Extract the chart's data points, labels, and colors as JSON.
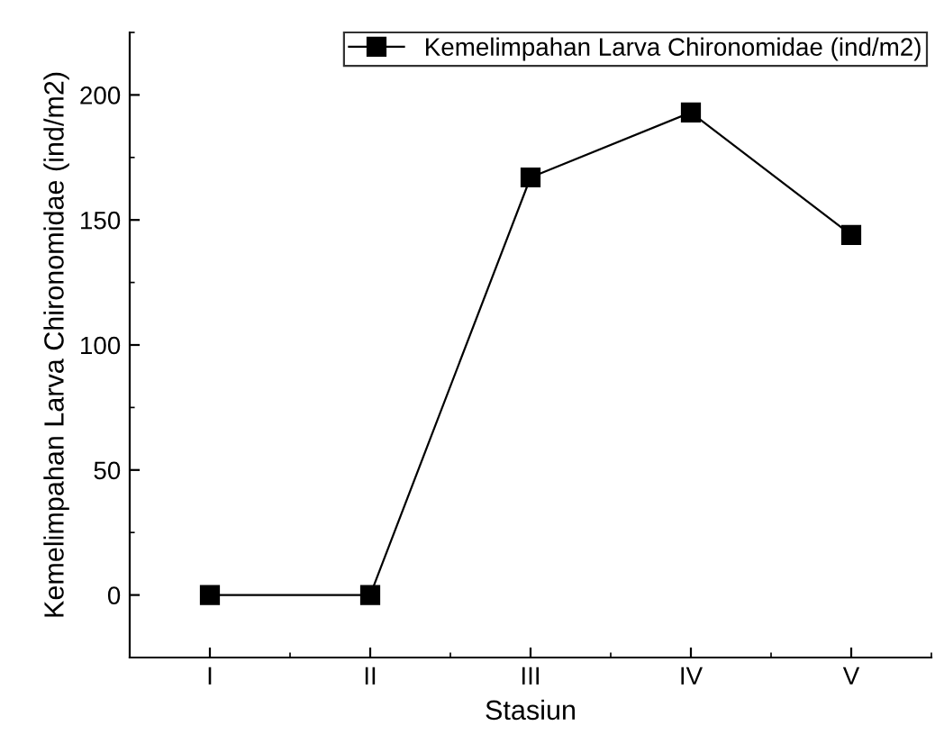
{
  "chart_data": {
    "type": "line",
    "xlabel": "Stasiun",
    "ylabel": "Kemelimpahan Larva Chironomidae (ind/m2)",
    "categories": [
      "I",
      "II",
      "III",
      "IV",
      "V"
    ],
    "series": [
      {
        "name": "Kemelimpahan Larva Chironomidae (ind/m2)",
        "color": "#000000",
        "values": [
          0,
          0,
          167,
          193,
          144
        ]
      }
    ],
    "ylim": [
      -25,
      225
    ],
    "yticks": [
      0,
      50,
      100,
      150,
      200
    ],
    "grid": false,
    "legend": "top right",
    "marker": "square",
    "line_style": "solid"
  }
}
